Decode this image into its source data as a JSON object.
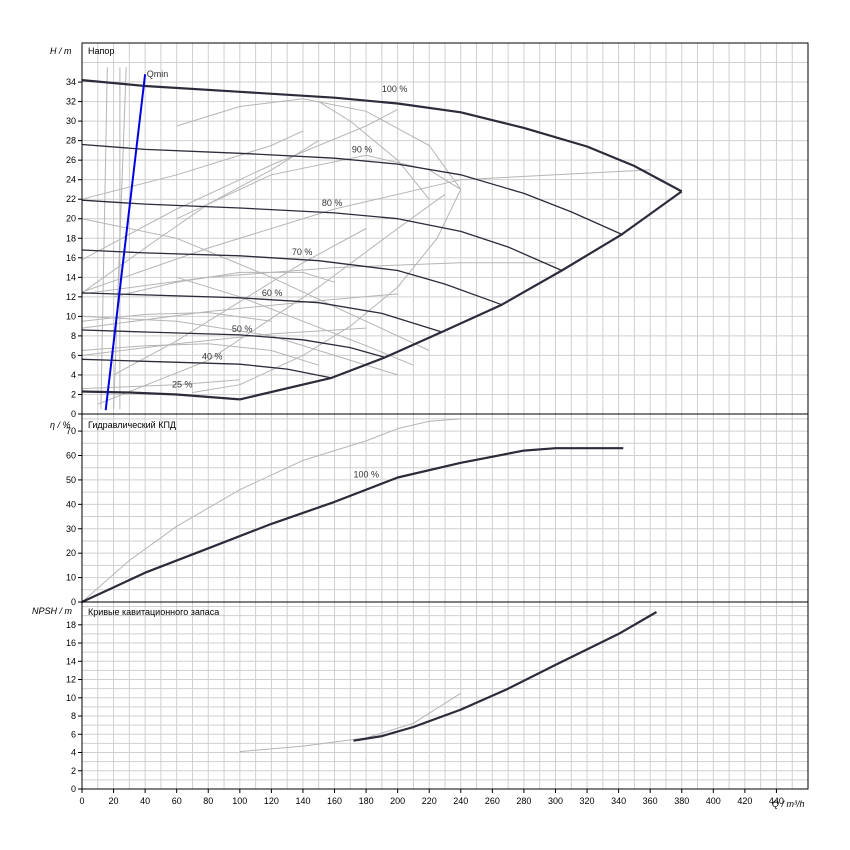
{
  "chart_data": [
    {
      "type": "line",
      "title": "Напор",
      "ylabel": "H / m",
      "xlim": [
        0,
        460
      ],
      "ylim": [
        0,
        38
      ],
      "y_ticks": [
        0,
        2,
        4,
        6,
        8,
        10,
        12,
        14,
        16,
        18,
        20,
        22,
        24,
        26,
        28,
        30,
        32,
        34
      ],
      "grid": true,
      "series": [
        {
          "name": "100 %",
          "points": [
            [
              0,
              34.2
            ],
            [
              40,
              33.6
            ],
            [
              100,
              33.0
            ],
            [
              160,
              32.4
            ],
            [
              200,
              31.8
            ],
            [
              240,
              30.9
            ],
            [
              280,
              29.3
            ],
            [
              320,
              27.4
            ],
            [
              350,
              25.4
            ],
            [
              380,
              22.8
            ]
          ]
        },
        {
          "name": "90 %",
          "points": [
            [
              0,
              27.6
            ],
            [
              40,
              27.1
            ],
            [
              100,
              26.7
            ],
            [
              160,
              26.2
            ],
            [
              200,
              25.6
            ],
            [
              240,
              24.5
            ],
            [
              280,
              22.6
            ],
            [
              310,
              20.7
            ],
            [
              342,
              18.4
            ]
          ]
        },
        {
          "name": "80 %",
          "points": [
            [
              0,
              21.9
            ],
            [
              40,
              21.5
            ],
            [
              100,
              21.1
            ],
            [
              160,
              20.6
            ],
            [
              200,
              20.0
            ],
            [
              240,
              18.7
            ],
            [
              270,
              17.1
            ],
            [
              304,
              14.7
            ]
          ]
        },
        {
          "name": "70 %",
          "points": [
            [
              0,
              16.8
            ],
            [
              40,
              16.5
            ],
            [
              100,
              16.2
            ],
            [
              150,
              15.7
            ],
            [
              200,
              14.7
            ],
            [
              230,
              13.3
            ],
            [
              266,
              11.2
            ]
          ]
        },
        {
          "name": "60 %",
          "points": [
            [
              0,
              12.4
            ],
            [
              40,
              12.2
            ],
            [
              100,
              11.9
            ],
            [
              150,
              11.4
            ],
            [
              190,
              10.3
            ],
            [
              228,
              8.4
            ]
          ]
        },
        {
          "name": "50 %",
          "points": [
            [
              0,
              8.6
            ],
            [
              40,
              8.4
            ],
            [
              100,
              8.1
            ],
            [
              140,
              7.6
            ],
            [
              170,
              6.8
            ],
            [
              192,
              5.8
            ]
          ]
        },
        {
          "name": "40 %",
          "points": [
            [
              0,
              5.6
            ],
            [
              40,
              5.4
            ],
            [
              100,
              5.1
            ],
            [
              130,
              4.6
            ],
            [
              158,
              3.7
            ]
          ]
        },
        {
          "name": "25 %",
          "points": [
            [
              0,
              2.3
            ],
            [
              30,
              2.2
            ],
            [
              60,
              2.0
            ],
            [
              100,
              1.5
            ]
          ]
        },
        {
          "name": "",
          "points": [
            [
              100,
              1.5
            ],
            [
              158,
              3.7
            ],
            [
              192,
              5.8
            ],
            [
              228,
              8.4
            ],
            [
              266,
              11.2
            ],
            [
              304,
              14.7
            ],
            [
              342,
              18.4
            ],
            [
              380,
              22.8
            ]
          ]
        },
        {
          "name": "Qmin",
          "points": [
            [
              15,
              0.4
            ],
            [
              40,
              34.8
            ]
          ]
        }
      ],
      "curve_labels": [
        {
          "text": "100 %",
          "x": 190,
          "y": 33.0
        },
        {
          "text": "90 %",
          "x": 171,
          "y": 26.8
        },
        {
          "text": "80 %",
          "x": 152,
          "y": 21.3
        },
        {
          "text": "70 %",
          "x": 133,
          "y": 16.3
        },
        {
          "text": "60 %",
          "x": 114,
          "y": 12.1
        },
        {
          "text": "50 %",
          "x": 95,
          "y": 8.4
        },
        {
          "text": "40 %",
          "x": 76,
          "y": 5.6
        },
        {
          "text": "25 %",
          "x": 57,
          "y": 2.7
        },
        {
          "text": "Qmin",
          "x": 41,
          "y": 34.5
        }
      ]
    },
    {
      "type": "line",
      "title": "Гидравлический КПД",
      "ylabel": "η / %",
      "xlim": [
        0,
        460
      ],
      "ylim": [
        0,
        77
      ],
      "y_ticks": [
        0,
        10,
        20,
        30,
        40,
        50,
        60,
        70
      ],
      "grid": true,
      "series": [
        {
          "name": "100 %",
          "points": [
            [
              0,
              0
            ],
            [
              20,
              6
            ],
            [
              40,
              12
            ],
            [
              80,
              22
            ],
            [
              120,
              32
            ],
            [
              160,
              41
            ],
            [
              200,
              51
            ],
            [
              240,
              57
            ],
            [
              280,
              62
            ],
            [
              300,
              63
            ],
            [
              343,
              63
            ]
          ]
        }
      ],
      "curve_labels": [
        {
          "text": "100 %",
          "x": 172,
          "y": 51
        }
      ]
    },
    {
      "type": "line",
      "title": "Кривые кавитационного запаса",
      "ylabel": "NPSH / m",
      "xlabel": "Q / m³/h",
      "xlim": [
        0,
        460
      ],
      "ylim": [
        0,
        20.5
      ],
      "y_ticks": [
        0,
        2,
        4,
        6,
        8,
        10,
        12,
        14,
        16,
        18
      ],
      "x_ticks": [
        0,
        20,
        40,
        60,
        80,
        100,
        120,
        140,
        160,
        180,
        200,
        220,
        240,
        260,
        280,
        300,
        320,
        340,
        360,
        380,
        400,
        420,
        440
      ],
      "grid": true,
      "series": [
        {
          "name": "",
          "points": [
            [
              172,
              5.3
            ],
            [
              190,
              5.8
            ],
            [
              210,
              6.8
            ],
            [
              240,
              8.7
            ],
            [
              270,
              11.0
            ],
            [
              300,
              13.6
            ],
            [
              340,
              17.0
            ],
            [
              364,
              19.4
            ]
          ]
        }
      ]
    }
  ]
}
